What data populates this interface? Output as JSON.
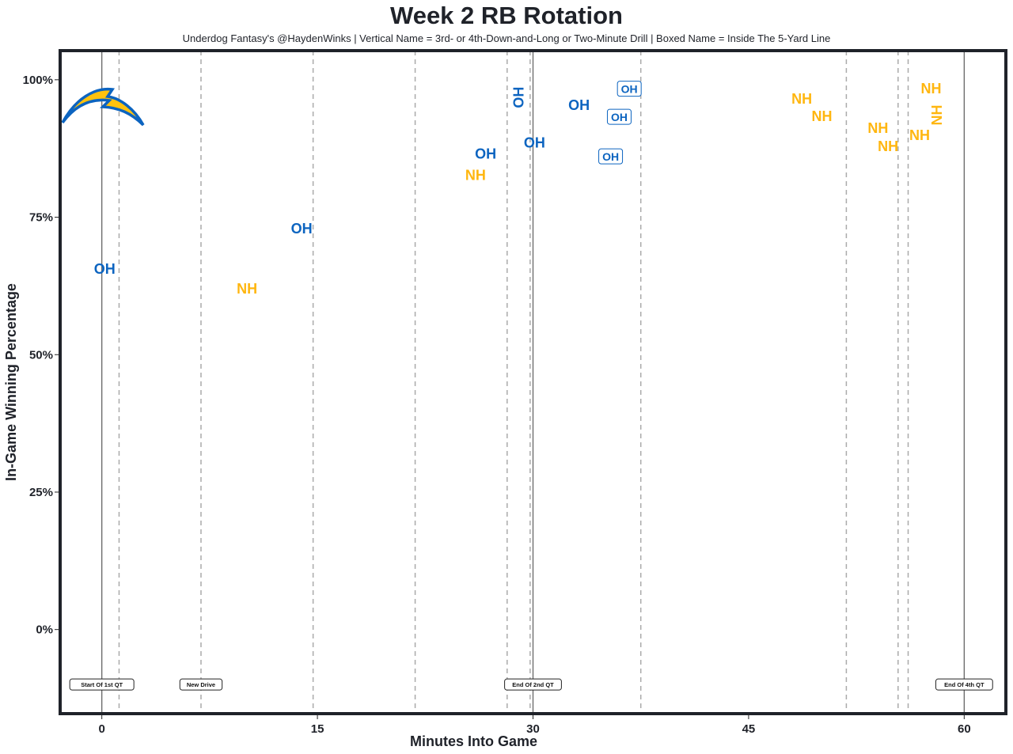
{
  "chart_data": {
    "type": "scatter",
    "title": "Week 2 RB Rotation",
    "subtitle": "Underdog Fantasy's @HaydenWinks | Vertical Name = 3rd- or 4th-Down-and-Long or Two-Minute Drill | Boxed Name = Inside The 5-Yard Line",
    "xlabel": "Minutes Into Game",
    "ylabel": "In-Game Winning Percentage",
    "xlim": [
      -2.9,
      62.9
    ],
    "ylim": [
      -15.3,
      105.3
    ],
    "xticks": [
      0,
      15,
      30,
      45,
      60
    ],
    "xtick_labels": [
      "0",
      "15",
      "30",
      "45",
      "60"
    ],
    "yticks": [
      0,
      25,
      50,
      75,
      100
    ],
    "ytick_labels": [
      "0%",
      "25%",
      "50%",
      "75%",
      "100%"
    ],
    "grid": false,
    "colors": {
      "OH": "#0c64c0",
      "NH": "#ffb60f",
      "frame": "#1f2229"
    },
    "points": [
      {
        "label": "OH",
        "x": 0.2,
        "y": 65.6,
        "vertical": false,
        "boxed": false
      },
      {
        "label": "NH",
        "x": 10.1,
        "y": 62.0,
        "vertical": false,
        "boxed": false
      },
      {
        "label": "OH",
        "x": 13.9,
        "y": 72.9,
        "vertical": false,
        "boxed": false
      },
      {
        "label": "NH",
        "x": 26.0,
        "y": 82.6,
        "vertical": false,
        "boxed": false
      },
      {
        "label": "OH",
        "x": 26.7,
        "y": 86.5,
        "vertical": false,
        "boxed": false
      },
      {
        "label": "OH",
        "x": 29.0,
        "y": 96.8,
        "vertical": true,
        "boxed": false
      },
      {
        "label": "OH",
        "x": 30.1,
        "y": 88.5,
        "vertical": false,
        "boxed": false
      },
      {
        "label": "OH",
        "x": 33.2,
        "y": 95.4,
        "vertical": false,
        "boxed": false
      },
      {
        "label": "OH",
        "x": 36.7,
        "y": 98.3,
        "vertical": false,
        "boxed": true
      },
      {
        "label": "OH",
        "x": 36.0,
        "y": 93.2,
        "vertical": false,
        "boxed": true
      },
      {
        "label": "OH",
        "x": 35.4,
        "y": 86.0,
        "vertical": false,
        "boxed": true
      },
      {
        "label": "NH",
        "x": 48.7,
        "y": 96.5,
        "vertical": false,
        "boxed": false
      },
      {
        "label": "NH",
        "x": 50.1,
        "y": 96.5,
        "vertical": false,
        "boxed": false
      },
      {
        "label": "NH",
        "x": 54.0,
        "y": 91.2,
        "vertical": false,
        "boxed": false
      },
      {
        "label": "NH",
        "x": 54.7,
        "y": 90.2,
        "vertical": false,
        "boxed": false
      },
      {
        "label": "NH",
        "x": 56.9,
        "y": 89.9,
        "vertical": false,
        "boxed": false
      },
      {
        "label": "NH",
        "x": 58.1,
        "y": 90.4,
        "vertical": true,
        "boxed": false
      },
      {
        "label": "NH",
        "x": 57.7,
        "y": 98.4,
        "vertical": false,
        "boxed": false
      }
    ],
    "drive_lines": [
      1.2,
      6.9,
      14.7,
      21.8,
      28.2,
      29.8,
      37.5,
      51.8,
      55.4,
      56.1
    ],
    "quarter_lines": [
      0,
      30,
      60
    ],
    "annotations": [
      {
        "text": "Start Of 1st QT",
        "x": 0,
        "y": -10
      },
      {
        "text": "New Drive",
        "x": 6.9,
        "y": -10
      },
      {
        "text": "End Of 2nd QT",
        "x": 30,
        "y": -10
      },
      {
        "text": "End Of 4th QT",
        "x": 60,
        "y": -10
      }
    ]
  }
}
